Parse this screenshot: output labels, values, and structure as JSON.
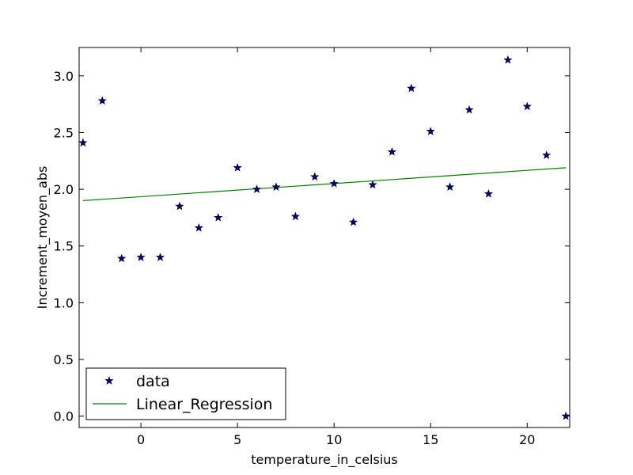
{
  "chart_data": {
    "type": "scatter",
    "title": "",
    "xlabel": "temperature_in_celsius",
    "ylabel": "Increment_moyen_abs",
    "xlim": [
      -3.2,
      22.2
    ],
    "ylim": [
      -0.1,
      3.25
    ],
    "xticks": [
      0,
      5,
      10,
      15,
      20
    ],
    "xtick_labels": [
      "0",
      "5",
      "10",
      "15",
      "20"
    ],
    "yticks": [
      0.0,
      0.5,
      1.0,
      1.5,
      2.0,
      2.5,
      3.0
    ],
    "ytick_labels": [
      "0.0",
      "0.5",
      "1.0",
      "1.5",
      "2.0",
      "2.5",
      "3.0"
    ],
    "grid": false,
    "legend_position": "lower-left",
    "series": [
      {
        "name": "data",
        "kind": "scatter",
        "marker": "star",
        "color": "#000080",
        "points": [
          [
            -3,
            2.41
          ],
          [
            -2,
            2.78
          ],
          [
            -1,
            1.39
          ],
          [
            0,
            1.4
          ],
          [
            1,
            1.4
          ],
          [
            2,
            1.85
          ],
          [
            3,
            1.66
          ],
          [
            4,
            1.75
          ],
          [
            5,
            2.19
          ],
          [
            6,
            2.0
          ],
          [
            7,
            2.02
          ],
          [
            8,
            1.76
          ],
          [
            9,
            2.11
          ],
          [
            10,
            2.05
          ],
          [
            11,
            1.71
          ],
          [
            12,
            2.04
          ],
          [
            13,
            2.33
          ],
          [
            14,
            2.89
          ],
          [
            15,
            2.51
          ],
          [
            16,
            2.02
          ],
          [
            17,
            2.7
          ],
          [
            18,
            1.96
          ],
          [
            19,
            3.14
          ],
          [
            20,
            2.73
          ],
          [
            21,
            2.3
          ],
          [
            22,
            0.0
          ]
        ]
      },
      {
        "name": "Linear_Regression",
        "kind": "line",
        "color": "#008000",
        "points": [
          [
            -3,
            1.9
          ],
          [
            22,
            2.19
          ]
        ]
      }
    ]
  }
}
